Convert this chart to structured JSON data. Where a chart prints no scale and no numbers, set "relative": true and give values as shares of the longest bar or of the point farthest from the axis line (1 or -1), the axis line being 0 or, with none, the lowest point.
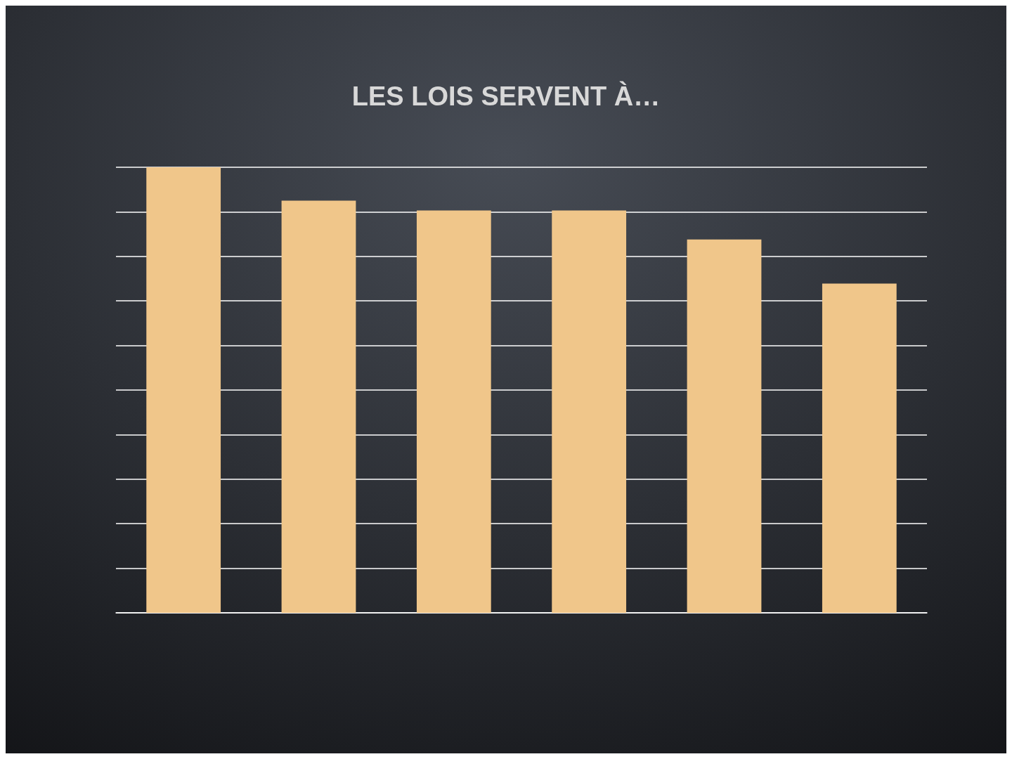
{
  "chart_data": {
    "type": "bar",
    "title": "LES LOIS SERVENT À…",
    "categories": [
      null,
      null,
      null,
      null,
      null,
      null
    ],
    "values": [
      1,
      0.925,
      0.903,
      0.903,
      0.838,
      0.739
    ],
    "color": "#f0c68a",
    "relative": true,
    "grid": "y"
  }
}
